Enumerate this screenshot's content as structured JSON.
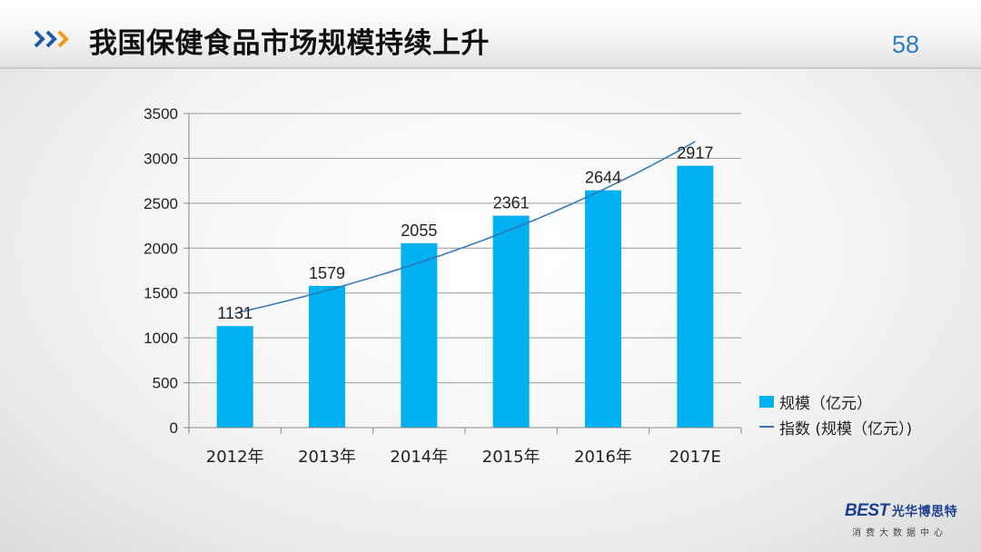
{
  "header": {
    "title": "我国保健食品市场规模持续上升",
    "page_number": "58",
    "accent_colors": [
      "#1e5aa8",
      "#f29a1b"
    ]
  },
  "legend": {
    "bar_label": "规模（亿元）",
    "line_label": "指数 (规模（亿元）)"
  },
  "logo": {
    "brand": "BEST",
    "name_cn": "光华博思特",
    "subtitle": "消费大数据中心"
  },
  "chart_data": {
    "type": "bar",
    "categories": [
      "2012年",
      "2013年",
      "2014年",
      "2015年",
      "2016年",
      "2017E"
    ],
    "series": [
      {
        "name": "规模（亿元）",
        "values": [
          1131,
          1579,
          2055,
          2361,
          2644,
          2917
        ],
        "color": "#00b0f0"
      }
    ],
    "trendline": {
      "name": "指数 (规模（亿元）)",
      "kind": "exponential",
      "color": "#2e75b6"
    },
    "data_labels": [
      "1131",
      "1579",
      "2055",
      "2361",
      "2644",
      "2917"
    ],
    "ylim": [
      0,
      3500
    ],
    "yticks": [
      0,
      500,
      1000,
      1500,
      2000,
      2500,
      3000,
      3500
    ],
    "grid": true,
    "legend_position": "right"
  }
}
